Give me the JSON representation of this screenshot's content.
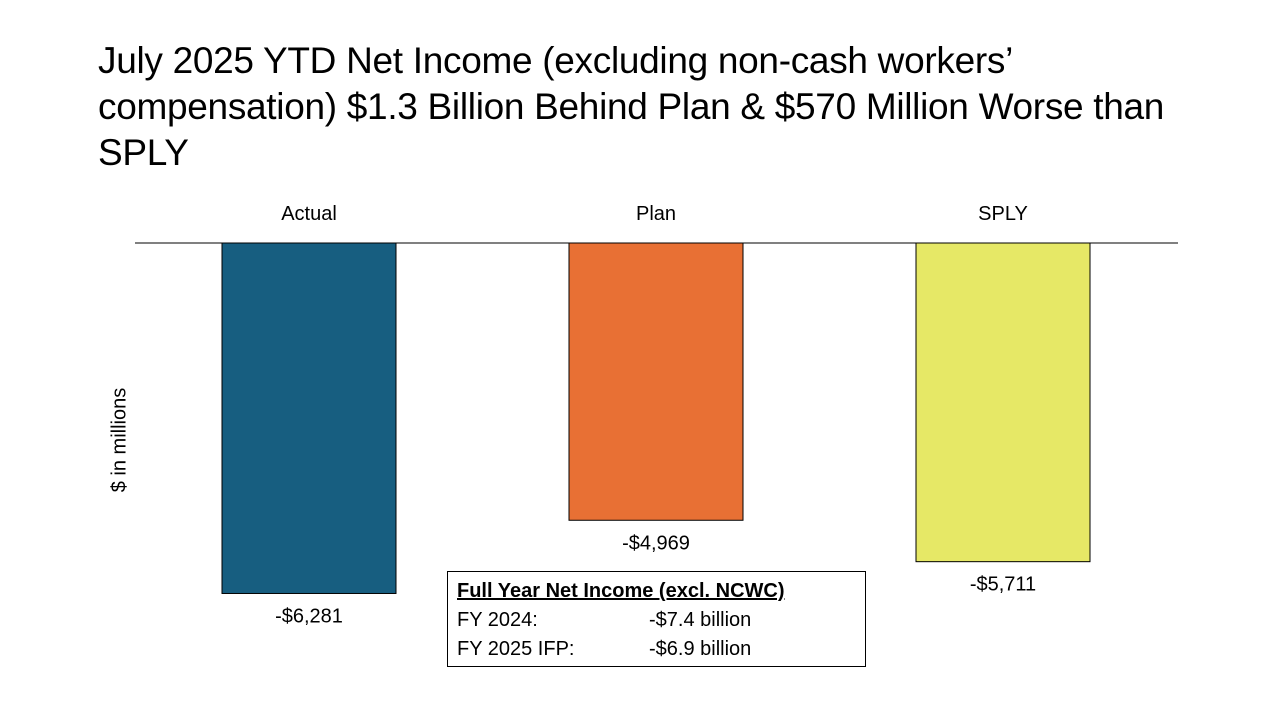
{
  "title": "July 2025 YTD Net Income (excluding non-cash workers’ compensation) $1.3 Billion Behind Plan & $570 Million Worse than SPLY",
  "chart_data": {
    "type": "bar",
    "categories": [
      "Actual",
      "Plan",
      "SPLY"
    ],
    "values": [
      -6281,
      -4969,
      -5711
    ],
    "value_labels": [
      "-$6,281",
      "-$4,969",
      "-$5,711"
    ],
    "colors": [
      "#175e80",
      "#e87034",
      "#e6e866"
    ],
    "ylabel": "$ in millions",
    "xaxis_position": "top",
    "grid": false,
    "legend": "none"
  },
  "info_box": {
    "title": "Full Year Net Income (excl. NCWC)",
    "rows": [
      {
        "label": "FY 2024:",
        "value": "-$7.4 billion"
      },
      {
        "label": "FY 2025 IFP:",
        "value": "-$6.9 billion"
      }
    ]
  }
}
